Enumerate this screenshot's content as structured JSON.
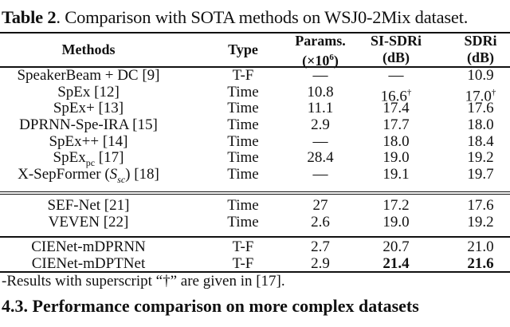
{
  "caption": {
    "label": "Table 2",
    "text": ". Comparison with SOTA methods on WSJ0-2Mix dataset."
  },
  "header": {
    "methods": "Methods",
    "type": "Type",
    "params_l1": "Params.",
    "params_l2": "(×10",
    "params_sup": "6",
    "params_l2_end": ")",
    "si_l1": "SI-SDRi",
    "si_l2": "(dB)",
    "sdr_l1": "SDRi",
    "sdr_l2": "(dB)"
  },
  "rows": [
    {
      "method": "SpeakerBeam + DC [9]",
      "type": "T-F",
      "params": "—",
      "si": "—",
      "sdr": "10.9"
    },
    {
      "method": "SpEx [12]",
      "type": "Time",
      "params": "10.8",
      "si": "16.6",
      "si_sup": "†",
      "sdr": "17.0",
      "sdr_sup": "†"
    },
    {
      "method": "SpEx+ [13]",
      "type": "Time",
      "params": "11.1",
      "si": "17.4",
      "sdr": "17.6"
    },
    {
      "method": "DPRNN-Spe-IRA [15]",
      "type": "Time",
      "params": "2.9",
      "si": "17.7",
      "sdr": "18.0"
    },
    {
      "method": "SpEx++ [14]",
      "type": "Time",
      "params": "—",
      "si": "18.0",
      "sdr": "18.4"
    },
    {
      "method": "SpEx",
      "method_sub": "pc",
      "method_end": " [17]",
      "type": "Time",
      "params": "28.4",
      "si": "19.0",
      "sdr": "19.2"
    },
    {
      "method": "X-SepFormer (",
      "method_it": "S",
      "method_it_sub": "sc",
      "method_end": ") [18]",
      "type": "Time",
      "params": "—",
      "si": "19.1",
      "sdr": "19.7"
    },
    {
      "method": "SEF-Net [21]",
      "type": "Time",
      "params": "27",
      "si": "17.2",
      "sdr": "17.6"
    },
    {
      "method": "VEVEN [22]",
      "type": "Time",
      "params": "2.6",
      "si": "19.0",
      "sdr": "19.2"
    },
    {
      "method": "CIENet-mDPRNN",
      "type": "T-F",
      "params": "2.7",
      "si": "20.7",
      "sdr": "21.0"
    },
    {
      "method": "CIENet-mDPTNet",
      "type": "T-F",
      "params": "2.9",
      "si": "21.4",
      "sdr": "21.6",
      "best": true
    }
  ],
  "footnote": "-Results with superscript “†” are given in [17].",
  "section_heading": "4.3. Performance comparison on more complex datasets"
}
